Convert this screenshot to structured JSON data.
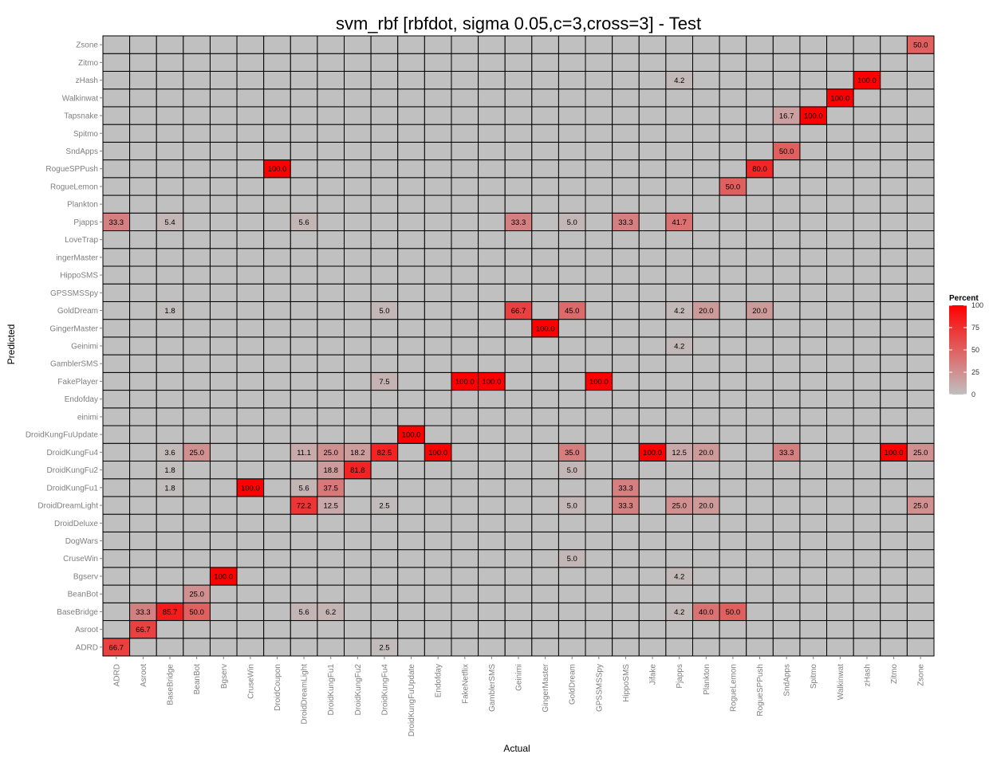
{
  "chart_data": {
    "type": "heatmap",
    "title": "svm_rbf [rbfdot, sigma 0.05,c=3,cross=3] - Test",
    "xlabel": "Actual",
    "ylabel": "Predicted",
    "x_categories": [
      "ADRD",
      "Asroot",
      "BaseBridge",
      "BeanBot",
      "Bgserv",
      "CruseWin",
      "DroidCoupon",
      "DroidDreamLight",
      "DroidKungFu1",
      "DroidKungFu2",
      "DroidKungFu4",
      "DroidKungFuUpdate",
      "Endofday",
      "FakeNetflix",
      "GamblerSMS",
      "Geinimi",
      "GingerMaster",
      "GoldDream",
      "GPSSMSSpy",
      "HippoSMS",
      "Jifake",
      "Pjapps",
      "Plankton",
      "RogueLemon",
      "RogueSPPush",
      "SndApps",
      "Spitmo",
      "Walkinwat",
      "zHash",
      "Zitmo",
      "Zsone"
    ],
    "y_categories": [
      "ADRD",
      "Asroot",
      "BaseBridge",
      "BeanBot",
      "Bgserv",
      "CruseWin",
      "DogWars",
      "DroidDeluxe",
      "DroidDreamLight",
      "DroidKungFu1",
      "DroidKungFu2",
      "DroidKungFu4",
      "DroidKungFuUpdate",
      "einimi",
      "Endofday",
      "FakePlayer",
      "GamblerSMS",
      "Geinimi",
      "GingerMaster",
      "GoldDream",
      "GPSSMSSpy",
      "HippoSMS",
      "ingerMaster",
      "LoveTrap",
      "Pjapps",
      "Plankton",
      "RogueLemon",
      "RogueSPPush",
      "SndApps",
      "Spitmo",
      "Tapsnake",
      "Walkinwat",
      "zHash",
      "Zitmo",
      "Zsone"
    ],
    "value_labels": [
      {
        "x": "Zsone",
        "y": "Zsone",
        "value": 50.0,
        "label": "50.0"
      },
      {
        "x": "Pjapps",
        "y": "zHash",
        "value": 4.2,
        "label": "4.2"
      },
      {
        "x": "zHash",
        "y": "zHash",
        "value": 100.0,
        "label": "100.0"
      },
      {
        "x": "Walkinwat",
        "y": "Walkinwat",
        "value": 100.0,
        "label": "100.0"
      },
      {
        "x": "SndApps",
        "y": "Tapsnake",
        "value": 16.7,
        "label": "16.7"
      },
      {
        "x": "Spitmo",
        "y": "Tapsnake",
        "value": 100.0,
        "label": "100.0"
      },
      {
        "x": "SndApps",
        "y": "SndApps",
        "value": 50.0,
        "label": "50.0"
      },
      {
        "x": "DroidCoupon",
        "y": "RogueSPPush",
        "value": 100.0,
        "label": "100.0"
      },
      {
        "x": "RogueSPPush",
        "y": "RogueSPPush",
        "value": 80.0,
        "label": "80.0"
      },
      {
        "x": "RogueLemon",
        "y": "RogueLemon",
        "value": 50.0,
        "label": "50.0"
      },
      {
        "x": "ADRD",
        "y": "Pjapps",
        "value": 33.3,
        "label": "33.3"
      },
      {
        "x": "BaseBridge",
        "y": "Pjapps",
        "value": 5.4,
        "label": "5.4"
      },
      {
        "x": "DroidDreamLight",
        "y": "Pjapps",
        "value": 5.6,
        "label": "5.6"
      },
      {
        "x": "Geinimi",
        "y": "Pjapps",
        "value": 33.3,
        "label": "33.3"
      },
      {
        "x": "GoldDream",
        "y": "Pjapps",
        "value": 5.0,
        "label": "5.0"
      },
      {
        "x": "HippoSMS",
        "y": "Pjapps",
        "value": 33.3,
        "label": "33.3"
      },
      {
        "x": "Pjapps",
        "y": "Pjapps",
        "value": 41.7,
        "label": "41.7"
      },
      {
        "x": "BaseBridge",
        "y": "GoldDream",
        "value": 1.8,
        "label": "1.8"
      },
      {
        "x": "DroidKungFu4",
        "y": "GoldDream",
        "value": 5.0,
        "label": "5.0"
      },
      {
        "x": "Geinimi",
        "y": "GoldDream",
        "value": 66.7,
        "label": "66.7"
      },
      {
        "x": "GoldDream",
        "y": "GoldDream",
        "value": 45.0,
        "label": "45.0"
      },
      {
        "x": "Pjapps",
        "y": "GoldDream",
        "value": 4.2,
        "label": "4.2"
      },
      {
        "x": "Plankton",
        "y": "GoldDream",
        "value": 20.0,
        "label": "20.0"
      },
      {
        "x": "RogueSPPush",
        "y": "GoldDream",
        "value": 20.0,
        "label": "20.0"
      },
      {
        "x": "GingerMaster",
        "y": "GingerMaster",
        "value": 100.0,
        "label": "100.0"
      },
      {
        "x": "Pjapps",
        "y": "Geinimi",
        "value": 4.2,
        "label": "4.2"
      },
      {
        "x": "DroidKungFu4",
        "y": "FakePlayer",
        "value": 7.5,
        "label": "7.5"
      },
      {
        "x": "FakeNetflix",
        "y": "FakePlayer",
        "value": 100.0,
        "label": "100.0"
      },
      {
        "x": "GamblerSMS",
        "y": "FakePlayer",
        "value": 100.0,
        "label": "100.0"
      },
      {
        "x": "GPSSMSSpy",
        "y": "FakePlayer",
        "value": 100.0,
        "label": "100.0"
      },
      {
        "x": "DroidKungFuUpdate",
        "y": "DroidKungFuUpdate",
        "value": 100.0,
        "label": "100.0"
      },
      {
        "x": "BaseBridge",
        "y": "DroidKungFu4",
        "value": 3.6,
        "label": "3.6"
      },
      {
        "x": "BeanBot",
        "y": "DroidKungFu4",
        "value": 25.0,
        "label": "25.0"
      },
      {
        "x": "DroidDreamLight",
        "y": "DroidKungFu4",
        "value": 11.1,
        "label": "11.1"
      },
      {
        "x": "DroidKungFu1",
        "y": "DroidKungFu4",
        "value": 25.0,
        "label": "25.0"
      },
      {
        "x": "DroidKungFu2",
        "y": "DroidKungFu4",
        "value": 18.2,
        "label": "18.2"
      },
      {
        "x": "DroidKungFu4",
        "y": "DroidKungFu4",
        "value": 82.5,
        "label": "82.5"
      },
      {
        "x": "Endofday",
        "y": "DroidKungFu4",
        "value": 100.0,
        "label": "100.0"
      },
      {
        "x": "GoldDream",
        "y": "DroidKungFu4",
        "value": 35.0,
        "label": "35.0"
      },
      {
        "x": "Jifake",
        "y": "DroidKungFu4",
        "value": 100.0,
        "label": "100.0"
      },
      {
        "x": "Pjapps",
        "y": "DroidKungFu4",
        "value": 12.5,
        "label": "12.5"
      },
      {
        "x": "Plankton",
        "y": "DroidKungFu4",
        "value": 20.0,
        "label": "20.0"
      },
      {
        "x": "SndApps",
        "y": "DroidKungFu4",
        "value": 33.3,
        "label": "33.3"
      },
      {
        "x": "Zitmo",
        "y": "DroidKungFu4",
        "value": 100.0,
        "label": "100.0"
      },
      {
        "x": "Zsone",
        "y": "DroidKungFu4",
        "value": 25.0,
        "label": "25.0"
      },
      {
        "x": "BaseBridge",
        "y": "DroidKungFu2",
        "value": 1.8,
        "label": "1.8"
      },
      {
        "x": "DroidKungFu1",
        "y": "DroidKungFu2",
        "value": 18.8,
        "label": "18.8"
      },
      {
        "x": "DroidKungFu2",
        "y": "DroidKungFu2",
        "value": 81.8,
        "label": "81.8"
      },
      {
        "x": "GoldDream",
        "y": "DroidKungFu2",
        "value": 5.0,
        "label": "5.0"
      },
      {
        "x": "BaseBridge",
        "y": "DroidKungFu1",
        "value": 1.8,
        "label": "1.8"
      },
      {
        "x": "CruseWin",
        "y": "DroidKungFu1",
        "value": 100.0,
        "label": "100.0"
      },
      {
        "x": "DroidDreamLight",
        "y": "DroidKungFu1",
        "value": 5.6,
        "label": "5.6"
      },
      {
        "x": "DroidKungFu1",
        "y": "DroidKungFu1",
        "value": 37.5,
        "label": "37.5"
      },
      {
        "x": "HippoSMS",
        "y": "DroidKungFu1",
        "value": 33.3,
        "label": "33.3"
      },
      {
        "x": "DroidDreamLight",
        "y": "DroidDreamLight",
        "value": 72.2,
        "label": "72.2"
      },
      {
        "x": "DroidKungFu1",
        "y": "DroidDreamLight",
        "value": 12.5,
        "label": "12.5"
      },
      {
        "x": "DroidKungFu4",
        "y": "DroidDreamLight",
        "value": 2.5,
        "label": "2.5"
      },
      {
        "x": "GoldDream",
        "y": "DroidDreamLight",
        "value": 5.0,
        "label": "5.0"
      },
      {
        "x": "HippoSMS",
        "y": "DroidDreamLight",
        "value": 33.3,
        "label": "33.3"
      },
      {
        "x": "Pjapps",
        "y": "DroidDreamLight",
        "value": 25.0,
        "label": "25.0"
      },
      {
        "x": "Plankton",
        "y": "DroidDreamLight",
        "value": 20.0,
        "label": "20.0"
      },
      {
        "x": "Zsone",
        "y": "DroidDreamLight",
        "value": 25.0,
        "label": "25.0"
      },
      {
        "x": "GoldDream",
        "y": "CruseWin",
        "value": 5.0,
        "label": "5.0"
      },
      {
        "x": "Bgserv",
        "y": "Bgserv",
        "value": 100.0,
        "label": "100.0"
      },
      {
        "x": "Pjapps",
        "y": "Bgserv",
        "value": 4.2,
        "label": "4.2"
      },
      {
        "x": "BeanBot",
        "y": "BeanBot",
        "value": 25.0,
        "label": "25.0"
      },
      {
        "x": "Asroot",
        "y": "BaseBridge",
        "value": 33.3,
        "label": "33.3"
      },
      {
        "x": "BaseBridge",
        "y": "BaseBridge",
        "value": 85.7,
        "label": "85.7"
      },
      {
        "x": "BeanBot",
        "y": "BaseBridge",
        "value": 50.0,
        "label": "50.0"
      },
      {
        "x": "DroidDreamLight",
        "y": "BaseBridge",
        "value": 5.6,
        "label": "5.6"
      },
      {
        "x": "DroidKungFu1",
        "y": "BaseBridge",
        "value": 6.2,
        "label": "6.2"
      },
      {
        "x": "Pjapps",
        "y": "BaseBridge",
        "value": 4.2,
        "label": "4.2"
      },
      {
        "x": "Plankton",
        "y": "BaseBridge",
        "value": 40.0,
        "label": "40.0"
      },
      {
        "x": "RogueLemon",
        "y": "BaseBridge",
        "value": 50.0,
        "label": "50.0"
      },
      {
        "x": "Asroot",
        "y": "Asroot",
        "value": 66.7,
        "label": "66.7"
      },
      {
        "x": "ADRD",
        "y": "ADRD",
        "value": 66.7,
        "label": "66.7"
      },
      {
        "x": "DroidKungFu4",
        "y": "ADRD",
        "value": 2.5,
        "label": "2.5"
      }
    ],
    "value_range": [
      0,
      100
    ],
    "colors": {
      "low": "#c0c0c0",
      "high": "#ff0000",
      "border": "#000000"
    },
    "legend": {
      "title": "Percent",
      "ticks": [
        0,
        25,
        50,
        75,
        100
      ],
      "placement": "right"
    },
    "grid": false
  }
}
